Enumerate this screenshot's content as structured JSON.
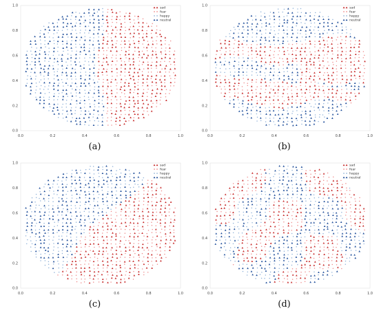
{
  "legend_entries": [
    "sad",
    "fear",
    "happy",
    "neutral"
  ],
  "colors": {
    "red_dark": "#c62828",
    "red_light": "#ef8a8a",
    "blue_dark": "#1f4e9a",
    "blue_light": "#8fb1d8",
    "axis": "#222222"
  },
  "chart_data": [
    {
      "type": "scatter",
      "caption": "(a)",
      "xlim": [
        0.0,
        1.0
      ],
      "ylim": [
        0.0,
        1.0
      ],
      "x_ticks": [
        "0.0",
        "0.2",
        "0.4",
        "0.6",
        "0.8",
        "1.0"
      ],
      "y_ticks": [
        "0.0",
        "0.2",
        "0.4",
        "0.6",
        "0.8",
        "1.0"
      ],
      "series": [
        {
          "name": "sad",
          "marker": "triangle",
          "color": "#c62828"
        },
        {
          "name": "fear",
          "marker": "dot",
          "color": "#ef8a8a"
        },
        {
          "name": "happy",
          "marker": "dot",
          "color": "#8fb1d8"
        },
        {
          "name": "neutral",
          "marker": "triangle",
          "color": "#1f4e9a"
        }
      ],
      "region_pattern": "left-half blue, right-half red"
    },
    {
      "type": "scatter",
      "caption": "(b)",
      "xlim": [
        0.0,
        1.0
      ],
      "ylim": [
        0.0,
        1.0
      ],
      "x_ticks": [
        "0.0",
        "0.2",
        "0.4",
        "0.6",
        "0.8",
        "1.0"
      ],
      "y_ticks": [
        "0.0",
        "0.2",
        "0.4",
        "0.6",
        "0.8",
        "1.0"
      ],
      "series": [
        {
          "name": "sad",
          "marker": "triangle",
          "color": "#c62828"
        },
        {
          "name": "fear",
          "marker": "dot",
          "color": "#ef8a8a"
        },
        {
          "name": "happy",
          "marker": "dot",
          "color": "#8fb1d8"
        },
        {
          "name": "neutral",
          "marker": "triangle",
          "color": "#1f4e9a"
        }
      ],
      "region_pattern": "red bands in middle, blue at top and bottom"
    },
    {
      "type": "scatter",
      "caption": "(c)",
      "xlim": [
        0.0,
        1.0
      ],
      "ylim": [
        0.0,
        1.0
      ],
      "x_ticks": [
        "0.0",
        "0.2",
        "0.4",
        "0.6",
        "0.8",
        "1.0"
      ],
      "y_ticks": [
        "0.0",
        "0.2",
        "0.4",
        "0.6",
        "0.8",
        "1.0"
      ],
      "series": [
        {
          "name": "sad",
          "marker": "triangle",
          "color": "#c62828"
        },
        {
          "name": "fear",
          "marker": "dot",
          "color": "#ef8a8a"
        },
        {
          "name": "happy",
          "marker": "dot",
          "color": "#8fb1d8"
        },
        {
          "name": "neutral",
          "marker": "triangle",
          "color": "#1f4e9a"
        }
      ],
      "region_pattern": "blue upper-left, red lower-right"
    },
    {
      "type": "scatter",
      "caption": "(d)",
      "xlim": [
        0.0,
        1.0
      ],
      "ylim": [
        0.0,
        1.0
      ],
      "x_ticks": [
        "0.0",
        "0.2",
        "0.4",
        "0.6",
        "0.8",
        "1.0"
      ],
      "y_ticks": [
        "0.0",
        "0.2",
        "0.4",
        "0.6",
        "0.8",
        "1.0"
      ],
      "series": [
        {
          "name": "sad",
          "marker": "triangle",
          "color": "#c62828"
        },
        {
          "name": "fear",
          "marker": "dot",
          "color": "#ef8a8a"
        },
        {
          "name": "happy",
          "marker": "dot",
          "color": "#8fb1d8"
        },
        {
          "name": "neutral",
          "marker": "triangle",
          "color": "#1f4e9a"
        }
      ],
      "region_pattern": "mixed patchwork of red and blue"
    }
  ]
}
